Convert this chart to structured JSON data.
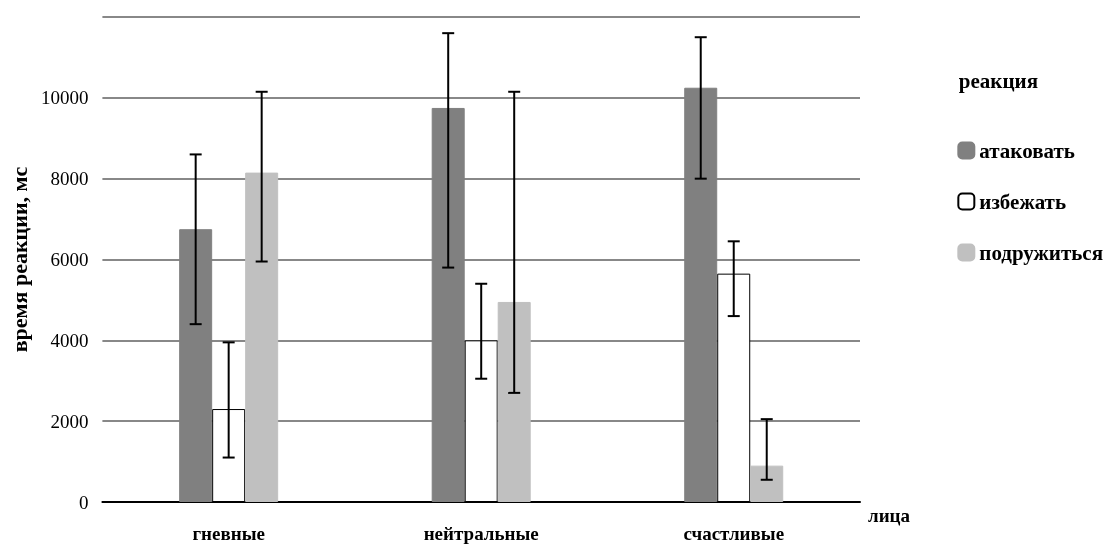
{
  "chart_data": {
    "type": "bar",
    "ylabel": "время реакции, мс",
    "xlabel": "лица",
    "legend_title": "реакция",
    "categories": [
      "гневные",
      "нейтральные",
      "счастливые"
    ],
    "series": [
      {
        "name": "атаковать",
        "color": "#808080",
        "values": [
          6750,
          9750,
          10250
        ],
        "errors": [
          [
            4400,
            8600
          ],
          [
            5800,
            11600
          ],
          [
            8000,
            11500
          ]
        ]
      },
      {
        "name": "избежать",
        "color": "#ffffff",
        "values": [
          2300,
          4000,
          5650
        ],
        "errors": [
          [
            1100,
            3950
          ],
          [
            3050,
            5400
          ],
          [
            4600,
            6450
          ]
        ]
      },
      {
        "name": "подружиться",
        "color": "#c0c0c0",
        "values": [
          8150,
          4950,
          900
        ],
        "errors": [
          [
            5950,
            10150
          ],
          [
            2700,
            10150
          ],
          [
            550,
            2050
          ]
        ]
      }
    ],
    "ylim": [
      0,
      12000
    ],
    "yticks": [
      0,
      2000,
      4000,
      6000,
      8000,
      10000,
      {
        "value": 12000,
        "label": null
      }
    ],
    "grid": "y",
    "legend": "right"
  }
}
